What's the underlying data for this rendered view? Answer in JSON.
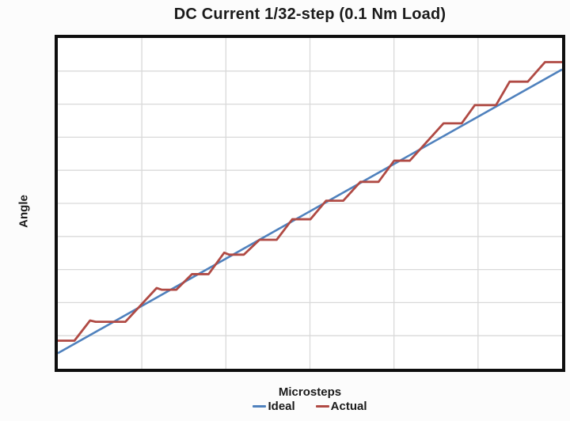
{
  "page": {
    "background_color": "#fcfcfc",
    "plot_background_color": "#ffffff",
    "plot_border_color": "#0e0e0e",
    "grid_color": "#d9d9d9",
    "text_color": "#1b1b1b"
  },
  "chart_data": {
    "type": "line",
    "title": "DC Current 1/32-step (0.1 Nm Load)",
    "xlabel": "Microsteps",
    "ylabel": "Angle",
    "legend_position": "bottom",
    "axes": {
      "x_tick_labels_visible": false,
      "y_tick_labels_visible": false,
      "grid": true,
      "grid_cols": 6,
      "grid_rows": 10,
      "x_range_pct": [
        0,
        100
      ],
      "y_range_pct": [
        0,
        100
      ]
    },
    "series": [
      {
        "name": "Ideal",
        "color": "#4f81bd",
        "stroke_width": 2.6,
        "shape": "straight-line",
        "points_pct": [
          [
            0,
            4.7
          ],
          [
            100,
            90.5
          ]
        ]
      },
      {
        "name": "Actual",
        "color": "#b04a44",
        "stroke_width": 2.8,
        "shape": "staircase",
        "points_pct": [
          [
            0,
            8.5
          ],
          [
            3.3,
            8.5
          ],
          [
            6.4,
            14.6
          ],
          [
            7.5,
            14.2
          ],
          [
            13.4,
            14.2
          ],
          [
            19.6,
            24.4
          ],
          [
            20.6,
            23.9
          ],
          [
            23.5,
            23.9
          ],
          [
            26.6,
            28.6
          ],
          [
            29.9,
            28.6
          ],
          [
            33.0,
            35.1
          ],
          [
            34.0,
            34.5
          ],
          [
            36.9,
            34.5
          ],
          [
            40.0,
            39.0
          ],
          [
            43.4,
            39.0
          ],
          [
            46.5,
            45.2
          ],
          [
            50.1,
            45.2
          ],
          [
            53.2,
            50.8
          ],
          [
            56.6,
            50.8
          ],
          [
            60.0,
            56.5
          ],
          [
            63.6,
            56.5
          ],
          [
            66.7,
            62.9
          ],
          [
            69.8,
            62.9
          ],
          [
            76.5,
            74.2
          ],
          [
            80.1,
            74.2
          ],
          [
            82.7,
            79.7
          ],
          [
            86.9,
            79.7
          ],
          [
            89.6,
            86.8
          ],
          [
            93.2,
            86.8
          ],
          [
            96.6,
            92.7
          ],
          [
            100,
            92.7
          ]
        ]
      }
    ]
  }
}
